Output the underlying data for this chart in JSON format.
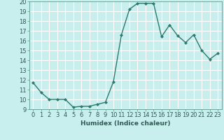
{
  "x": [
    0,
    1,
    2,
    3,
    4,
    5,
    6,
    7,
    8,
    9,
    10,
    11,
    12,
    13,
    14,
    15,
    16,
    17,
    18,
    19,
    20,
    21,
    22,
    23
  ],
  "y": [
    11.7,
    10.7,
    10.0,
    10.0,
    10.0,
    9.2,
    9.3,
    9.3,
    9.5,
    9.7,
    11.8,
    16.6,
    19.2,
    19.8,
    19.8,
    19.8,
    16.4,
    17.6,
    16.5,
    15.8,
    16.6,
    15.0,
    14.1,
    14.7
  ],
  "line_color": "#2d7a6e",
  "marker": "D",
  "marker_size": 2,
  "bg_color": "#c8eeee",
  "grid_color": "#ffffff",
  "xlabel": "Humidex (Indice chaleur)",
  "xlim": [
    -0.5,
    23.5
  ],
  "ylim": [
    9,
    20
  ],
  "yticks": [
    9,
    10,
    11,
    12,
    13,
    14,
    15,
    16,
    17,
    18,
    19,
    20
  ],
  "xticks": [
    0,
    1,
    2,
    3,
    4,
    5,
    6,
    7,
    8,
    9,
    10,
    11,
    12,
    13,
    14,
    15,
    16,
    17,
    18,
    19,
    20,
    21,
    22,
    23
  ],
  "xlabel_fontsize": 6.5,
  "tick_fontsize": 6.0,
  "linewidth": 1.0
}
